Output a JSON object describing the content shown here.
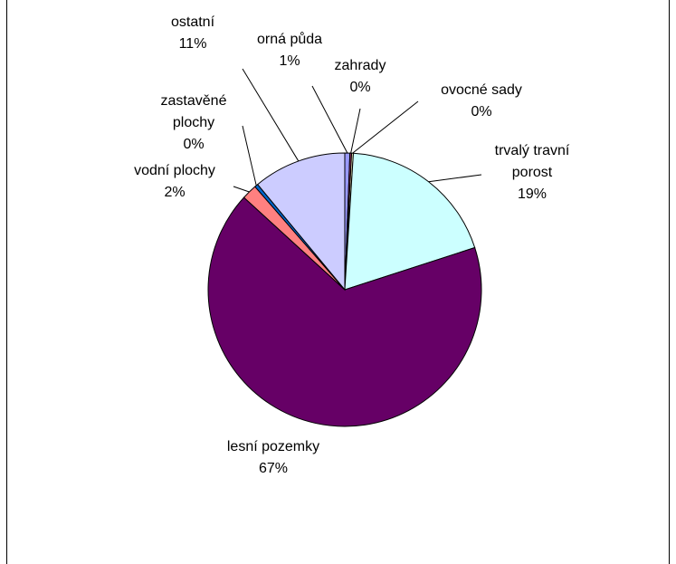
{
  "chart_data": {
    "type": "pie",
    "title": "",
    "start_angle_deg": 0,
    "direction": "clockwise",
    "slices": [
      {
        "label": "orná půda",
        "value": 0.6,
        "value_label": "1%",
        "color": "#9999FF"
      },
      {
        "label": "zahrady",
        "value": 0.2,
        "value_label": "0%",
        "color": "#993366"
      },
      {
        "label": "ovocné sady",
        "value": 0.2,
        "value_label": "0%",
        "color": "#FFFFCC"
      },
      {
        "label": "trvalý travní porost",
        "value": 19,
        "value_label": "19%",
        "color": "#CCFFFF"
      },
      {
        "label": "lesní pozemky",
        "value": 66.7,
        "value_label": "67%",
        "color": "#660066"
      },
      {
        "label": "vodní plochy",
        "value": 1.8,
        "value_label": "2%",
        "color": "#FF8080"
      },
      {
        "label": "zastavěné plochy",
        "value": 0.4,
        "value_label": "0%",
        "color": "#0066CC"
      },
      {
        "label": "ostatní",
        "value": 11,
        "value_label": "11%",
        "color": "#CCCCFF"
      }
    ]
  }
}
